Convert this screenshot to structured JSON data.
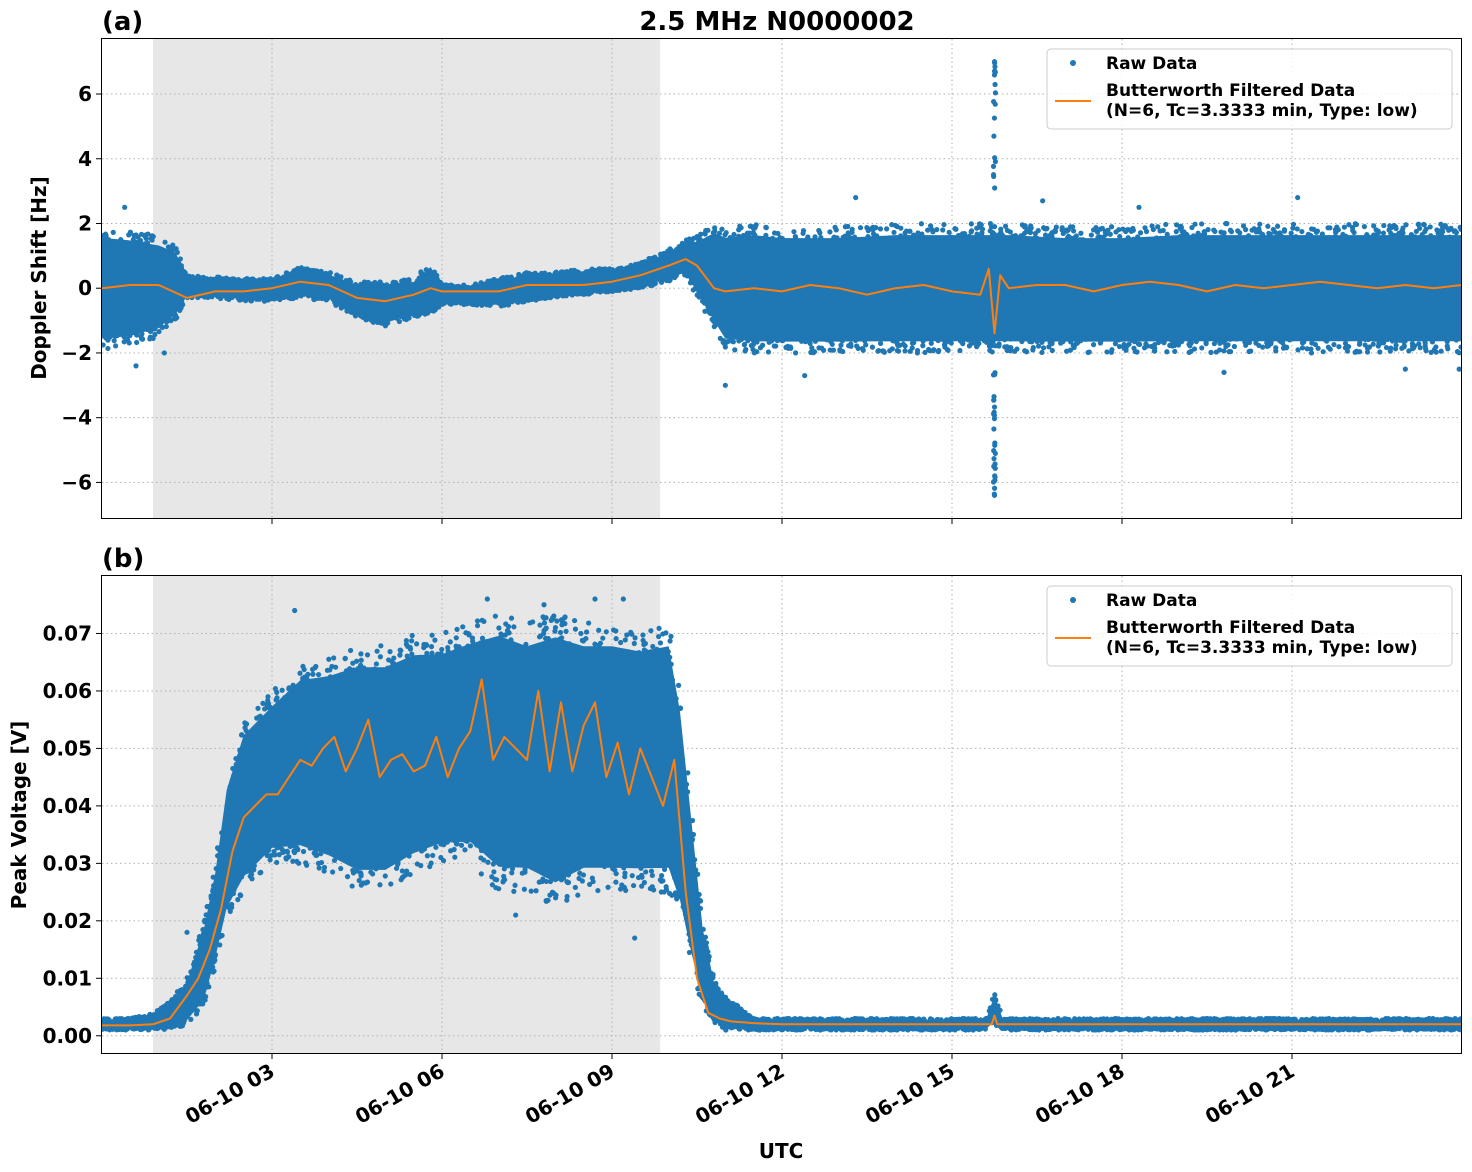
{
  "figure": {
    "title": "2.5 MHz N0000002",
    "xlabel": "UTC",
    "x_tick_labels": [
      "06-10 03",
      "06-10 06",
      "06-10 09",
      "06-10 12",
      "06-10 15",
      "06-10 18",
      "06-10 21"
    ],
    "colors": {
      "raw": "#1f77b4",
      "filtered": "#ff7f0e",
      "shade": "#e7e7e7",
      "grid": "#b0b0b0"
    }
  },
  "chart_data": [
    {
      "type": "scatter",
      "panel_label": "(a)",
      "ylabel": "Doppler Shift [Hz]",
      "x_units": "hours UTC on 06-10",
      "xlim": [
        0.0,
        24.0
      ],
      "ylim": [
        -7.1,
        7.7
      ],
      "yticks": [
        6,
        4,
        2,
        0,
        -2,
        -4,
        -6
      ],
      "ytick_labels": [
        "6",
        "4",
        "2",
        "0",
        "−2",
        "−4",
        "−6"
      ],
      "xticks": [
        3,
        6,
        9,
        12,
        15,
        18,
        21
      ],
      "grid": true,
      "shaded_interval": [
        0.9,
        9.85
      ],
      "legend": {
        "placement": "top-right",
        "entries": [
          {
            "kind": "marker",
            "label": "Raw Data"
          },
          {
            "kind": "line",
            "label": "Butterworth Filtered Data",
            "label2": "(N=6, Tc=3.3333 min, Type: low)"
          }
        ]
      },
      "series": [
        {
          "name": "Raw Data",
          "kind": "scatter_band",
          "x": [
            0.0,
            0.5,
            1.0,
            1.3,
            1.5,
            2.0,
            2.5,
            3.0,
            3.5,
            4.0,
            4.5,
            5.0,
            5.5,
            5.8,
            6.0,
            6.5,
            7.0,
            7.5,
            8.0,
            8.5,
            9.0,
            9.5,
            10.0,
            10.3,
            10.5,
            10.8,
            11.0,
            11.5,
            12.0,
            13.0,
            14.0,
            15.0,
            15.5,
            15.75,
            16.0,
            17.0,
            18.0,
            19.0,
            20.0,
            21.0,
            22.0,
            23.0,
            24.0
          ],
          "upper": [
            1.9,
            1.8,
            1.6,
            1.3,
            0.4,
            0.35,
            0.3,
            0.3,
            0.65,
            0.5,
            0.2,
            0.2,
            0.3,
            0.8,
            0.1,
            0.1,
            0.3,
            0.5,
            0.5,
            0.6,
            0.6,
            0.8,
            1.2,
            1.5,
            1.6,
            2.0,
            1.9,
            2.0,
            1.9,
            1.9,
            2.0,
            2.0,
            2.0,
            2.0,
            2.0,
            1.9,
            1.9,
            2.0,
            2.0,
            2.0,
            2.0,
            2.0,
            2.0
          ],
          "lower": [
            -1.9,
            -1.8,
            -1.5,
            -1.0,
            -0.3,
            -0.3,
            -0.4,
            -0.4,
            -0.3,
            -0.4,
            -0.9,
            -1.2,
            -0.9,
            -0.8,
            -0.5,
            -0.5,
            -0.6,
            -0.4,
            -0.3,
            -0.2,
            -0.1,
            0.0,
            0.2,
            0.4,
            -0.3,
            -1.3,
            -1.9,
            -2.0,
            -2.0,
            -2.0,
            -2.0,
            -2.0,
            -2.0,
            -2.0,
            -2.0,
            -2.0,
            -2.0,
            -2.0,
            -2.0,
            -2.0,
            -2.0,
            -2.0,
            -2.0
          ],
          "spike": {
            "x": 15.75,
            "min": -6.4,
            "max": 7.0
          },
          "outliers": [
            [
              0.4,
              2.5
            ],
            [
              0.6,
              -2.4
            ],
            [
              1.1,
              -2.0
            ],
            [
              11.0,
              -3.0
            ],
            [
              13.3,
              2.8
            ],
            [
              16.6,
              2.7
            ],
            [
              19.8,
              -2.6
            ],
            [
              21.1,
              2.8
            ],
            [
              23.0,
              -2.5
            ],
            [
              23.95,
              -2.5
            ],
            [
              12.4,
              -2.7
            ],
            [
              18.3,
              2.5
            ]
          ]
        },
        {
          "name": "Butterworth Filtered Data",
          "kind": "line",
          "x": [
            0.0,
            0.5,
            1.0,
            1.5,
            2.0,
            2.5,
            3.0,
            3.5,
            4.0,
            4.5,
            5.0,
            5.5,
            5.8,
            6.0,
            6.5,
            7.0,
            7.5,
            8.0,
            8.5,
            9.0,
            9.5,
            10.0,
            10.3,
            10.5,
            10.8,
            11.0,
            11.5,
            12.0,
            12.5,
            13.0,
            13.5,
            14.0,
            14.5,
            15.0,
            15.5,
            15.65,
            15.75,
            15.85,
            16.0,
            16.5,
            17.0,
            17.5,
            18.0,
            18.5,
            19.0,
            19.5,
            20.0,
            20.5,
            21.0,
            21.5,
            22.0,
            22.5,
            23.0,
            23.5,
            24.0
          ],
          "y": [
            0.0,
            0.1,
            0.1,
            -0.3,
            -0.1,
            -0.1,
            0.0,
            0.2,
            0.1,
            -0.3,
            -0.4,
            -0.2,
            0.0,
            -0.1,
            -0.1,
            -0.1,
            0.1,
            0.1,
            0.1,
            0.2,
            0.4,
            0.7,
            0.9,
            0.7,
            0.0,
            -0.1,
            0.0,
            -0.1,
            0.1,
            0.0,
            -0.2,
            0.0,
            0.1,
            -0.1,
            -0.2,
            0.6,
            -1.4,
            0.4,
            0.0,
            0.1,
            0.1,
            -0.1,
            0.1,
            0.2,
            0.1,
            -0.1,
            0.1,
            0.0,
            0.1,
            0.2,
            0.1,
            0.0,
            0.1,
            0.0,
            0.1
          ]
        }
      ]
    },
    {
      "type": "scatter",
      "panel_label": "(b)",
      "ylabel": "Peak Voltage [V]",
      "x_units": "hours UTC on 06-10",
      "xlim": [
        0.0,
        24.0
      ],
      "ylim": [
        -0.003,
        0.08
      ],
      "yticks": [
        0.07,
        0.06,
        0.05,
        0.04,
        0.03,
        0.02,
        0.01,
        0.0
      ],
      "ytick_labels": [
        "0.07",
        "0.06",
        "0.05",
        "0.04",
        "0.03",
        "0.02",
        "0.01",
        "0.00"
      ],
      "xticks": [
        3,
        6,
        9,
        12,
        15,
        18,
        21
      ],
      "grid": true,
      "shaded_interval": [
        0.9,
        9.85
      ],
      "legend": {
        "placement": "top-right",
        "entries": [
          {
            "kind": "marker",
            "label": "Raw Data"
          },
          {
            "kind": "line",
            "label": "Butterworth Filtered Data",
            "label2": "(N=6, Tc=3.3333 min, Type: low)"
          }
        ]
      },
      "series": [
        {
          "name": "Raw Data",
          "kind": "scatter_band",
          "x": [
            0.0,
            0.5,
            0.9,
            1.2,
            1.5,
            1.8,
            2.0,
            2.2,
            2.5,
            3.0,
            3.5,
            4.0,
            4.5,
            5.0,
            5.5,
            6.0,
            6.5,
            7.0,
            7.5,
            8.0,
            8.5,
            9.0,
            9.5,
            10.0,
            10.2,
            10.4,
            10.6,
            10.8,
            11.0,
            11.5,
            12.0,
            13.0,
            14.0,
            15.0,
            15.6,
            15.75,
            15.9,
            16.0,
            18.0,
            20.0,
            22.0,
            24.0
          ],
          "upper": [
            0.003,
            0.003,
            0.004,
            0.006,
            0.01,
            0.02,
            0.03,
            0.045,
            0.055,
            0.06,
            0.065,
            0.066,
            0.068,
            0.068,
            0.07,
            0.07,
            0.072,
            0.074,
            0.072,
            0.074,
            0.072,
            0.072,
            0.071,
            0.072,
            0.06,
            0.04,
            0.02,
            0.01,
            0.007,
            0.003,
            0.003,
            0.003,
            0.003,
            0.003,
            0.003,
            0.0075,
            0.003,
            0.003,
            0.003,
            0.003,
            0.003,
            0.003
          ],
          "lower": [
            0.001,
            0.001,
            0.001,
            0.001,
            0.002,
            0.005,
            0.012,
            0.02,
            0.025,
            0.03,
            0.03,
            0.028,
            0.025,
            0.025,
            0.028,
            0.03,
            0.03,
            0.025,
            0.025,
            0.022,
            0.025,
            0.025,
            0.025,
            0.025,
            0.02,
            0.012,
            0.005,
            0.002,
            0.001,
            0.001,
            0.001,
            0.001,
            0.001,
            0.001,
            0.001,
            0.002,
            0.001,
            0.001,
            0.001,
            0.001,
            0.001,
            0.001
          ],
          "outliers": [
            [
              1.5,
              0.018
            ],
            [
              3.4,
              0.074
            ],
            [
              7.3,
              0.021
            ],
            [
              9.4,
              0.017
            ],
            [
              8.7,
              0.076
            ],
            [
              6.8,
              0.076
            ],
            [
              7.8,
              0.075
            ],
            [
              9.2,
              0.076
            ]
          ]
        },
        {
          "name": "Butterworth Filtered Data",
          "kind": "line",
          "x": [
            0.0,
            0.5,
            0.9,
            1.2,
            1.5,
            1.7,
            1.9,
            2.1,
            2.3,
            2.5,
            2.7,
            2.9,
            3.1,
            3.3,
            3.5,
            3.7,
            3.9,
            4.1,
            4.3,
            4.5,
            4.7,
            4.9,
            5.1,
            5.3,
            5.5,
            5.7,
            5.9,
            6.1,
            6.3,
            6.5,
            6.7,
            6.9,
            7.1,
            7.3,
            7.5,
            7.7,
            7.9,
            8.1,
            8.3,
            8.5,
            8.7,
            8.9,
            9.1,
            9.3,
            9.5,
            9.7,
            9.9,
            10.1,
            10.3,
            10.5,
            10.7,
            10.9,
            11.1,
            11.5,
            12.0,
            13.0,
            14.0,
            15.0,
            15.7,
            15.75,
            15.8,
            16.0,
            17.0,
            18.0,
            19.0,
            20.0,
            21.0,
            22.0,
            23.0,
            24.0
          ],
          "y": [
            0.0018,
            0.0018,
            0.002,
            0.003,
            0.007,
            0.01,
            0.015,
            0.022,
            0.032,
            0.038,
            0.04,
            0.042,
            0.042,
            0.045,
            0.048,
            0.047,
            0.05,
            0.052,
            0.046,
            0.05,
            0.055,
            0.045,
            0.048,
            0.049,
            0.046,
            0.047,
            0.052,
            0.045,
            0.05,
            0.053,
            0.062,
            0.048,
            0.052,
            0.05,
            0.048,
            0.06,
            0.046,
            0.058,
            0.046,
            0.054,
            0.058,
            0.045,
            0.051,
            0.042,
            0.05,
            0.045,
            0.04,
            0.048,
            0.025,
            0.01,
            0.004,
            0.003,
            0.0025,
            0.0022,
            0.002,
            0.002,
            0.002,
            0.002,
            0.002,
            0.0035,
            0.002,
            0.002,
            0.002,
            0.002,
            0.002,
            0.002,
            0.002,
            0.002,
            0.002,
            0.002
          ]
        }
      ]
    }
  ]
}
